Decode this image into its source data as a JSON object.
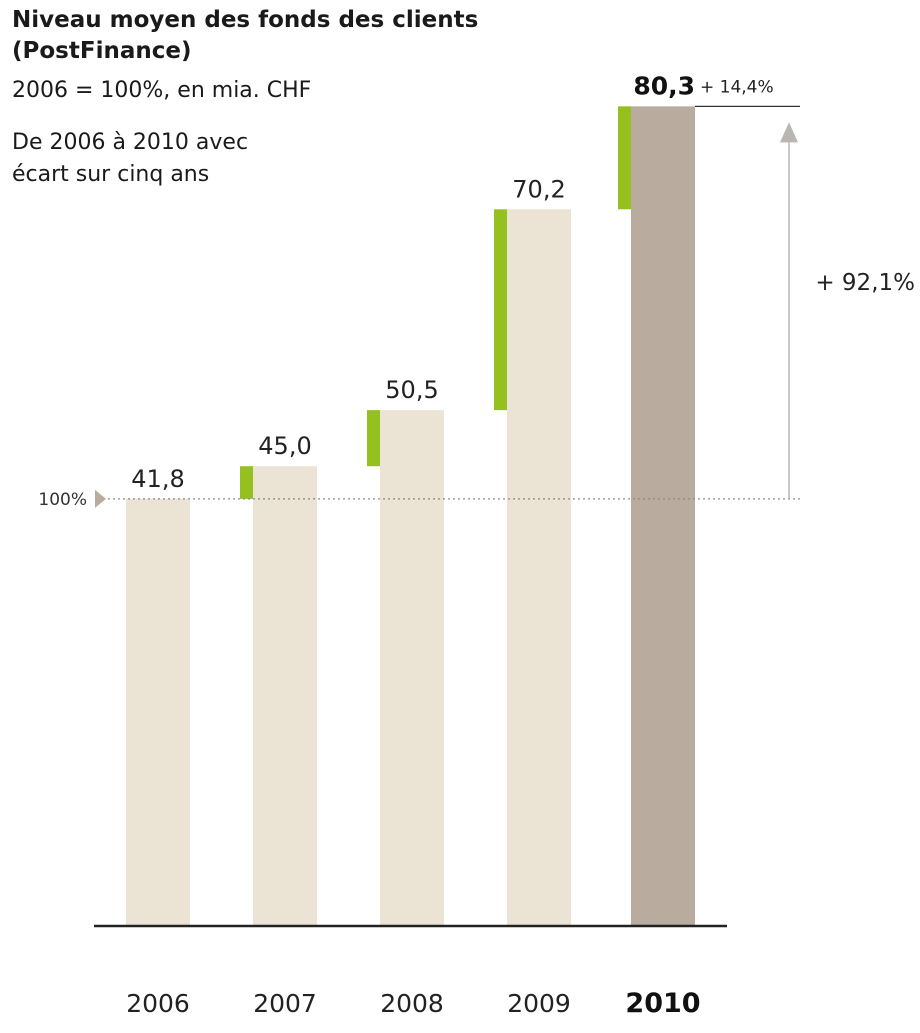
{
  "chart_data": {
    "type": "bar",
    "title": "Niveau moyen des fonds des clients",
    "title_line2": "(PostFinance)",
    "subtitle": "2006 = 100%, en mia. CHF",
    "note_line1": "De 2006 à 2010 avec",
    "note_line2": "écart sur cinq ans",
    "categories": [
      "2006",
      "2007",
      "2008",
      "2009",
      "2010"
    ],
    "values": [
      41.8,
      45.0,
      50.5,
      70.2,
      80.3
    ],
    "value_labels": [
      "41,8",
      "45,0",
      "50,5",
      "70,2",
      "80,3"
    ],
    "highlight_category": "2010",
    "reference_line": {
      "label": "100%",
      "value": 41.8
    },
    "last_year_change": "+ 14,4%",
    "five_year_change": "+ 92,1%",
    "colors": {
      "bar": "#ebe3d4",
      "bar_highlight": "#b9ab9d",
      "increase": "#94c11f",
      "arrow": "#b9b5b0",
      "axis": "#222222"
    }
  }
}
